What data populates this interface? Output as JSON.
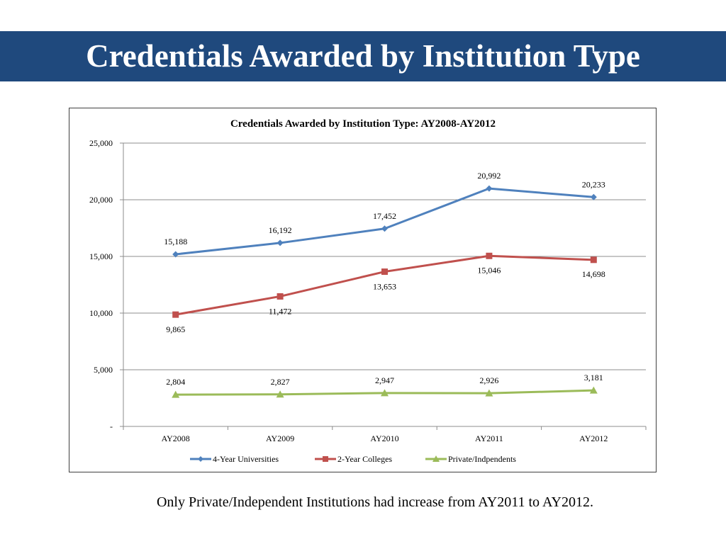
{
  "slide": {
    "title": "Credentials Awarded by Institution Type",
    "caption": "Only Private/Independent Institutions had increase from AY2011 to AY2012.",
    "title_bar_color": "#1f497d"
  },
  "chart_data": {
    "type": "line",
    "title": "Credentials Awarded by Institution Type: AY2008-AY2012",
    "categories": [
      "AY2008",
      "AY2009",
      "AY2010",
      "AY2011",
      "AY2012"
    ],
    "ylim": [
      0,
      25000
    ],
    "yticks": [
      0,
      5000,
      10000,
      15000,
      20000,
      25000
    ],
    "ytick_labels": [
      "-",
      "5,000",
      "10,000",
      "15,000",
      "20,000",
      "25,000"
    ],
    "grid": true,
    "legend_position": "bottom",
    "series": [
      {
        "name": "4-Year Universities",
        "values": [
          15188,
          16192,
          17452,
          20992,
          20233
        ],
        "labels": [
          "15,188",
          "16,192",
          "17,452",
          "20,992",
          "20,233"
        ],
        "color": "#4f81bd",
        "marker": "diamond"
      },
      {
        "name": "2-Year Colleges",
        "values": [
          9865,
          11472,
          13653,
          15046,
          14698
        ],
        "labels": [
          "9,865",
          "11,472",
          "13,653",
          "15,046",
          "14,698"
        ],
        "color": "#c0504d",
        "marker": "square"
      },
      {
        "name": "Private/Indpendents",
        "values": [
          2804,
          2827,
          2947,
          2926,
          3181
        ],
        "labels": [
          "2,804",
          "2,827",
          "2,947",
          "2,926",
          "3,181"
        ],
        "color": "#9bbb59",
        "marker": "triangle"
      }
    ]
  }
}
